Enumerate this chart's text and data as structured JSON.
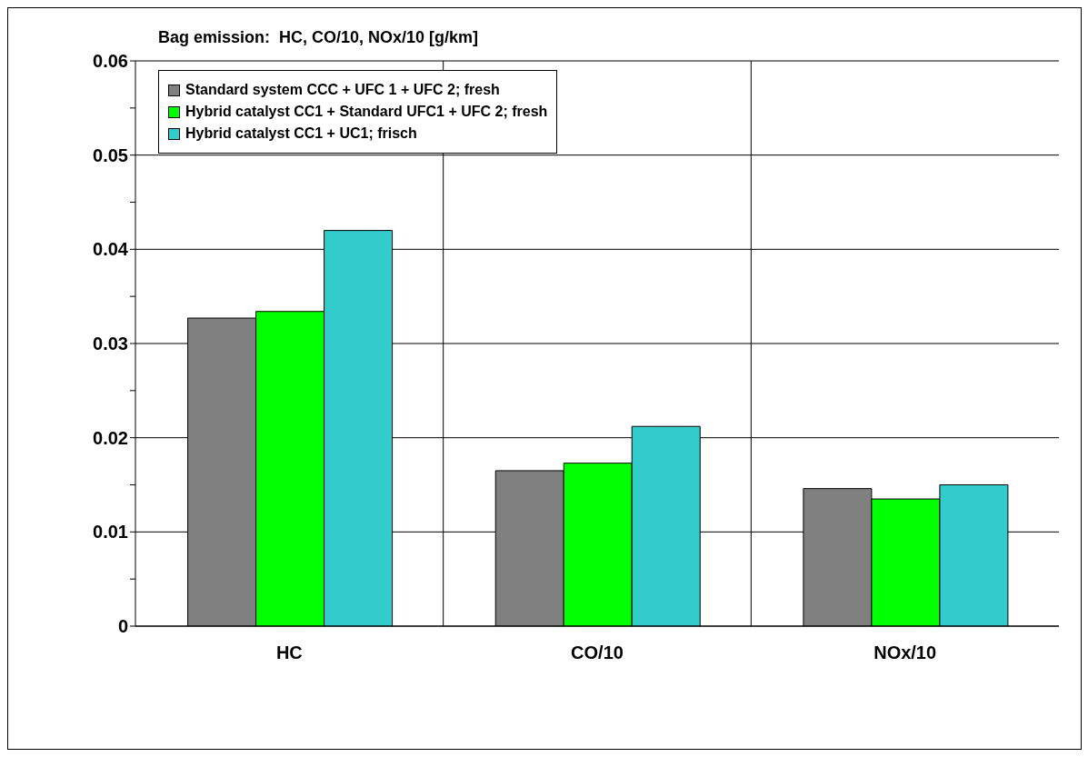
{
  "chart_data": {
    "type": "bar",
    "title": "Bag emission:  HC, CO/10, NOx/10 [g/km]",
    "categories": [
      "HC",
      "CO/10",
      "NOx/10"
    ],
    "series": [
      {
        "name": "Standard system CCC + UFC 1 + UFC 2; fresh",
        "color": "#808080",
        "values": [
          0.0327,
          0.0165,
          0.0146
        ]
      },
      {
        "name": "Hybrid catalyst CC1 + Standard UFC1 + UFC 2; fresh",
        "color": "#00ff00",
        "values": [
          0.0334,
          0.0173,
          0.0135
        ]
      },
      {
        "name": "Hybrid catalyst CC1 + UC1; frisch",
        "color": "#33cccc",
        "values": [
          0.042,
          0.0212,
          0.015
        ]
      }
    ],
    "ylim": [
      0,
      0.06
    ],
    "yticks": [
      0,
      {
        "value": 0.005,
        "label": null
      },
      0.01,
      {
        "value": 0.015,
        "label": null
      },
      0.02,
      {
        "value": 0.025,
        "label": null
      },
      0.03,
      {
        "value": 0.035,
        "label": null
      },
      0.04,
      {
        "value": 0.045,
        "label": null
      },
      0.05,
      {
        "value": 0.055,
        "label": null
      },
      0.06
    ],
    "grid": true,
    "legend": "top left"
  }
}
